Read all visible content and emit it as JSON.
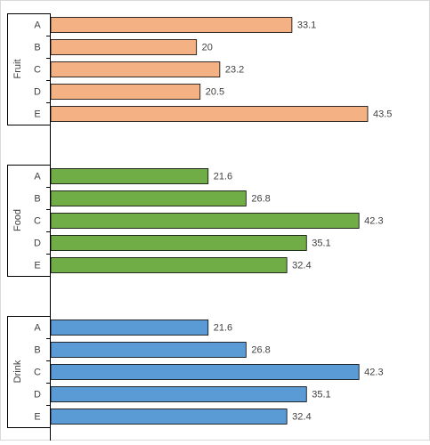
{
  "chart_data": {
    "type": "bar",
    "orientation": "horizontal",
    "title": "",
    "xlabel": "",
    "ylabel": "",
    "grid": false,
    "legend": "none",
    "xlim": [
      0,
      43.5
    ],
    "groups": [
      {
        "name": "Fruit",
        "color": "#F4B183",
        "categories": [
          "A",
          "B",
          "C",
          "D",
          "E"
        ],
        "values": [
          33.1,
          20,
          23.2,
          20.5,
          43.5
        ]
      },
      {
        "name": "Food",
        "color": "#70AD47",
        "categories": [
          "A",
          "B",
          "C",
          "D",
          "E"
        ],
        "values": [
          21.6,
          26.8,
          42.3,
          35.1,
          32.4
        ]
      },
      {
        "name": "Drink",
        "color": "#5B9BD5",
        "categories": [
          "A",
          "B",
          "C",
          "D",
          "E"
        ],
        "values": [
          21.6,
          26.8,
          42.3,
          35.1,
          32.4
        ]
      }
    ]
  }
}
